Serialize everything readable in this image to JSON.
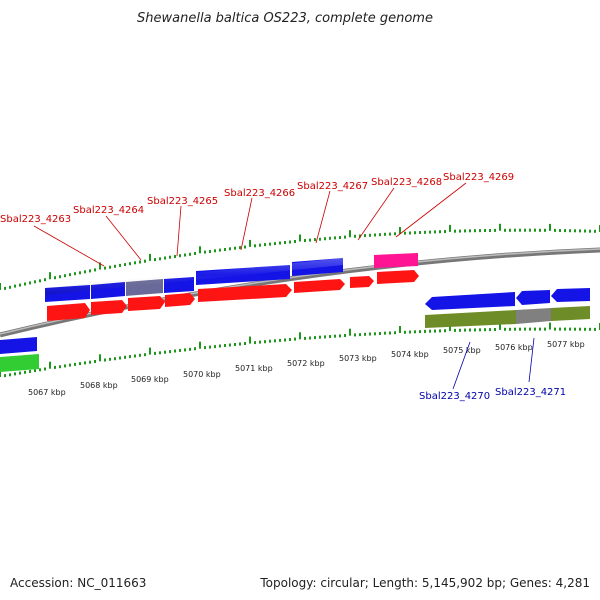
{
  "title": "Shewanella baltica OS223, complete genome",
  "footer": {
    "accession": "Accession: NC_011663",
    "summary": "Topology: circular; Length: 5,145,902 bp; Genes: 4,281"
  },
  "colors": {
    "backbone": "#8c8c8c",
    "forward_gene": "#1414e6",
    "forward_cds": "#ff1414",
    "reverse_gene": "#1414e6",
    "reverse_cds": "#6e8c28",
    "pseudo_gene": "#6a6a9a",
    "pseudo_cds": "#808080",
    "trna_gene": "#ff1493",
    "misc_gene": "#32cd32",
    "tick": "#1e961e",
    "forward_label": "#cc0000",
    "reverse_label": "#0000aa"
  },
  "kbp_labels": [
    "5067 kbp",
    "5068 kbp",
    "5069 kbp",
    "5070 kbp",
    "5071 kbp",
    "5072 kbp",
    "5073 kbp",
    "5074 kbp",
    "5075 kbp",
    "5076 kbp",
    "5077 kbp"
  ],
  "forward_gene_labels": [
    "Sbal223_4263",
    "Sbal223_4264",
    "Sbal223_4265",
    "Sbal223_4266",
    "Sbal223_4267",
    "Sbal223_4268",
    "Sbal223_4269"
  ],
  "reverse_gene_labels": [
    "Sbal223_4270",
    "Sbal223_4271"
  ]
}
